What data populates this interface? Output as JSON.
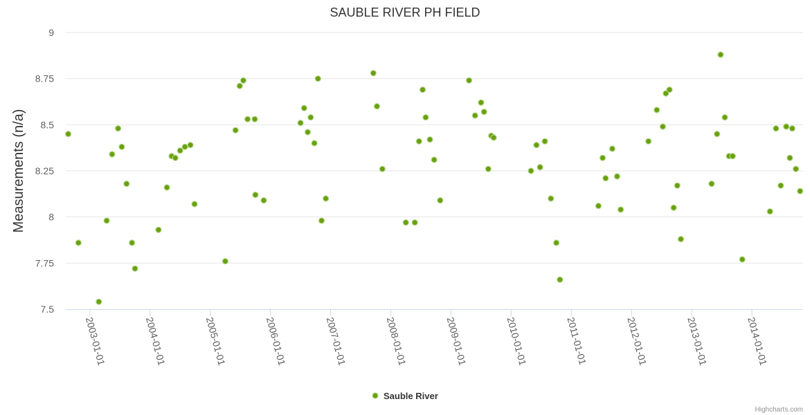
{
  "chart_data": {
    "type": "scatter",
    "title": "SAUBLE RIVER PH FIELD",
    "xlabel": "",
    "ylabel": "Measurements (n/a)",
    "ylim": [
      7.5,
      9
    ],
    "yticks": [
      "7.5",
      "7.75",
      "8",
      "8.25",
      "8.5",
      "8.75",
      "9"
    ],
    "xlim": [
      2002.6,
      2014.85
    ],
    "xticks": [
      {
        "label": "2003-01-01",
        "value": 2003
      },
      {
        "label": "2004-01-01",
        "value": 2004
      },
      {
        "label": "2005-01-01",
        "value": 2005
      },
      {
        "label": "2006-01-01",
        "value": 2006
      },
      {
        "label": "2007-01-01",
        "value": 2007
      },
      {
        "label": "2008-01-01",
        "value": 2008
      },
      {
        "label": "2009-01-01",
        "value": 2009
      },
      {
        "label": "2010-01-01",
        "value": 2010
      },
      {
        "label": "2011-01-01",
        "value": 2011
      },
      {
        "label": "2012-01-01",
        "value": 2012
      },
      {
        "label": "2013-01-01",
        "value": 2013
      },
      {
        "label": "2014-01-01",
        "value": 2014
      }
    ],
    "grid": true,
    "legend_position": "bottom-center",
    "series": [
      {
        "name": "Sauble River",
        "color": "#6aa00f",
        "points": [
          [
            2002.64,
            8.45
          ],
          [
            2002.81,
            7.86
          ],
          [
            2003.15,
            7.54
          ],
          [
            2003.28,
            7.98
          ],
          [
            2003.37,
            8.34
          ],
          [
            2003.47,
            8.48
          ],
          [
            2003.53,
            8.38
          ],
          [
            2003.61,
            8.18
          ],
          [
            2003.7,
            7.86
          ],
          [
            2003.75,
            7.72
          ],
          [
            2004.14,
            7.93
          ],
          [
            2004.28,
            8.16
          ],
          [
            2004.36,
            8.33
          ],
          [
            2004.42,
            8.32
          ],
          [
            2004.5,
            8.36
          ],
          [
            2004.58,
            8.38
          ],
          [
            2004.67,
            8.39
          ],
          [
            2004.74,
            8.07
          ],
          [
            2005.25,
            7.76
          ],
          [
            2005.42,
            8.47
          ],
          [
            2005.49,
            8.71
          ],
          [
            2005.55,
            8.74
          ],
          [
            2005.62,
            8.53
          ],
          [
            2005.74,
            8.53
          ],
          [
            2005.75,
            8.12
          ],
          [
            2005.89,
            8.09
          ],
          [
            2006.5,
            8.51
          ],
          [
            2006.56,
            8.59
          ],
          [
            2006.62,
            8.46
          ],
          [
            2006.67,
            8.54
          ],
          [
            2006.73,
            8.4
          ],
          [
            2006.79,
            8.75
          ],
          [
            2006.85,
            7.98
          ],
          [
            2006.92,
            8.1
          ],
          [
            2007.71,
            8.78
          ],
          [
            2007.77,
            8.6
          ],
          [
            2007.86,
            8.26
          ],
          [
            2008.25,
            7.97
          ],
          [
            2008.4,
            7.97
          ],
          [
            2008.47,
            8.41
          ],
          [
            2008.53,
            8.69
          ],
          [
            2008.58,
            8.54
          ],
          [
            2008.65,
            8.42
          ],
          [
            2008.72,
            8.31
          ],
          [
            2008.82,
            8.09
          ],
          [
            2009.3,
            8.74
          ],
          [
            2009.4,
            8.55
          ],
          [
            2009.5,
            8.62
          ],
          [
            2009.55,
            8.57
          ],
          [
            2009.62,
            8.26
          ],
          [
            2009.67,
            8.44
          ],
          [
            2009.71,
            8.43
          ],
          [
            2010.33,
            8.25
          ],
          [
            2010.42,
            8.39
          ],
          [
            2010.48,
            8.27
          ],
          [
            2010.56,
            8.41
          ],
          [
            2010.66,
            8.1
          ],
          [
            2010.75,
            7.86
          ],
          [
            2010.81,
            7.66
          ],
          [
            2011.45,
            8.06
          ],
          [
            2011.52,
            8.32
          ],
          [
            2011.57,
            8.21
          ],
          [
            2011.68,
            8.37
          ],
          [
            2011.76,
            8.22
          ],
          [
            2011.82,
            8.04
          ],
          [
            2012.28,
            8.41
          ],
          [
            2012.42,
            8.58
          ],
          [
            2012.52,
            8.49
          ],
          [
            2012.57,
            8.67
          ],
          [
            2012.63,
            8.69
          ],
          [
            2012.7,
            8.05
          ],
          [
            2012.76,
            8.17
          ],
          [
            2012.82,
            7.88
          ],
          [
            2013.33,
            8.18
          ],
          [
            2013.42,
            8.45
          ],
          [
            2013.48,
            8.88
          ],
          [
            2013.55,
            8.54
          ],
          [
            2013.62,
            8.33
          ],
          [
            2013.68,
            8.33
          ],
          [
            2013.84,
            7.77
          ],
          [
            2014.3,
            8.03
          ],
          [
            2014.4,
            8.48
          ],
          [
            2014.48,
            8.17
          ],
          [
            2014.57,
            8.49
          ],
          [
            2014.63,
            8.32
          ],
          [
            2014.67,
            8.48
          ],
          [
            2014.73,
            8.26
          ],
          [
            2014.8,
            8.14
          ]
        ]
      }
    ]
  },
  "credits": "Highcharts.com"
}
